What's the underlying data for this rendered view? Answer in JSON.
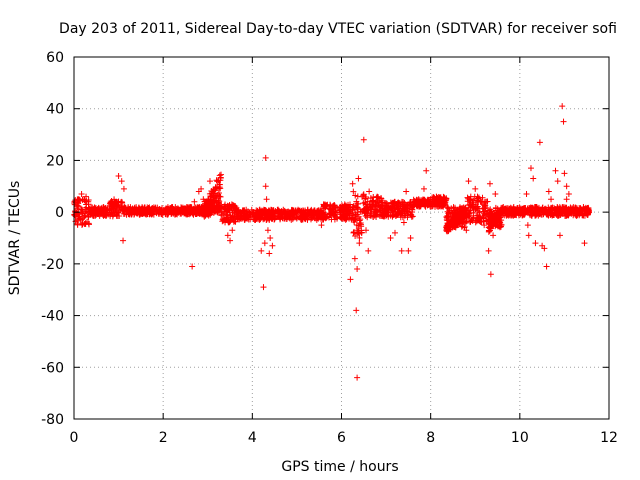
{
  "chart_data": {
    "type": "scatter",
    "title": "Day 203 of 2011, Sidereal Day-to-day VTEC variation (SDTVAR) for receiver sofi",
    "xlabel": "GPS time / hours",
    "ylabel": "SDTVAR / TECUs",
    "xlim": [
      0,
      12
    ],
    "ylim": [
      -80,
      60
    ],
    "xticks": [
      0,
      2,
      4,
      6,
      8,
      10,
      12
    ],
    "yticks": [
      -80,
      -60,
      -40,
      -20,
      0,
      20,
      40,
      60
    ],
    "grid": true,
    "marker": "+",
    "color": "#ff0000",
    "series": [
      {
        "name": "SDTVAR",
        "bands": [
          {
            "x": [
              0.0,
              0.35
            ],
            "y": [
              -5,
              5
            ]
          },
          {
            "x": [
              0.35,
              0.8
            ],
            "y": [
              -1.5,
              2
            ]
          },
          {
            "x": [
              0.8,
              1.1
            ],
            "y": [
              -2,
              5
            ]
          },
          {
            "x": [
              1.1,
              2.9
            ],
            "y": [
              -1,
              2
            ]
          },
          {
            "x": [
              2.9,
              3.05
            ],
            "y": [
              -1,
              5
            ]
          },
          {
            "x": [
              3.3,
              3.65
            ],
            "y": [
              -4,
              3
            ]
          },
          {
            "x": [
              3.65,
              5.6
            ],
            "y": [
              -3,
              1
            ]
          },
          {
            "x": [
              5.6,
              6.25
            ],
            "y": [
              -3,
              3
            ]
          },
          {
            "x": [
              6.25,
              6.5
            ],
            "y": [
              -10,
              8
            ]
          },
          {
            "x": [
              6.5,
              6.9
            ],
            "y": [
              -2,
              6
            ]
          },
          {
            "x": [
              6.9,
              7.6
            ],
            "y": [
              -2,
              4
            ]
          },
          {
            "x": [
              7.6,
              8.0
            ],
            "y": [
              2,
              5
            ]
          },
          {
            "x": [
              8.0,
              8.35
            ],
            "y": [
              2,
              6
            ]
          },
          {
            "x": [
              8.35,
              8.8
            ],
            "y": [
              -6,
              2
            ]
          },
          {
            "x": [
              8.8,
              9.3
            ],
            "y": [
              -4,
              6
            ]
          },
          {
            "x": [
              9.3,
              9.6
            ],
            "y": [
              -6,
              2
            ]
          },
          {
            "x": [
              9.6,
              11.55
            ],
            "y": [
              -1.5,
              2
            ]
          }
        ],
        "ramps": [
          {
            "x": [
              2.9,
              3.3
            ],
            "y1": [
              2,
              16
            ],
            "y2": [
              -2,
              0
            ]
          },
          {
            "x": [
              8.35,
              8.8
            ],
            "y1": [
              -5,
              3
            ],
            "y2": [
              -8,
              -2
            ]
          },
          {
            "x": [
              9.3,
              9.6
            ],
            "y1": [
              -8,
              0
            ],
            "y2": [
              -3,
              1
            ]
          }
        ],
        "points": [
          [
            0.17,
            7
          ],
          [
            0.2,
            5
          ],
          [
            0.25,
            4
          ],
          [
            0.27,
            6
          ],
          [
            1.0,
            14
          ],
          [
            1.07,
            12
          ],
          [
            1.12,
            9
          ],
          [
            1.1,
            -11
          ],
          [
            2.65,
            -21
          ],
          [
            2.7,
            4
          ],
          [
            2.8,
            8
          ],
          [
            2.85,
            9
          ],
          [
            3.05,
            12
          ],
          [
            3.45,
            -9
          ],
          [
            3.5,
            -11
          ],
          [
            3.55,
            -7
          ],
          [
            4.2,
            -15
          ],
          [
            4.25,
            -29
          ],
          [
            4.3,
            21
          ],
          [
            4.3,
            10
          ],
          [
            4.32,
            5
          ],
          [
            4.28,
            -12
          ],
          [
            4.35,
            -7
          ],
          [
            4.38,
            -3
          ],
          [
            4.4,
            -10
          ],
          [
            4.45,
            -13
          ],
          [
            4.38,
            -16
          ],
          [
            5.55,
            -5
          ],
          [
            5.6,
            3
          ],
          [
            6.2,
            -26
          ],
          [
            6.25,
            11
          ],
          [
            6.3,
            -18
          ],
          [
            6.33,
            -38
          ],
          [
            6.35,
            -64
          ],
          [
            6.35,
            -22
          ],
          [
            6.38,
            13
          ],
          [
            6.4,
            -12
          ],
          [
            6.45,
            -8
          ],
          [
            6.5,
            28
          ],
          [
            6.55,
            -7
          ],
          [
            6.6,
            -15
          ],
          [
            6.62,
            8
          ],
          [
            7.1,
            -10
          ],
          [
            7.2,
            -8
          ],
          [
            7.35,
            -15
          ],
          [
            7.45,
            8
          ],
          [
            7.5,
            -15
          ],
          [
            7.4,
            -4
          ],
          [
            7.55,
            -10
          ],
          [
            7.85,
            9
          ],
          [
            7.9,
            16
          ],
          [
            8.4,
            -6
          ],
          [
            8.7,
            -4
          ],
          [
            8.8,
            -7
          ],
          [
            8.85,
            12
          ],
          [
            8.9,
            6
          ],
          [
            9.0,
            9
          ],
          [
            9.05,
            6
          ],
          [
            9.2,
            -5
          ],
          [
            9.3,
            -15
          ],
          [
            9.33,
            11
          ],
          [
            9.35,
            -24
          ],
          [
            9.4,
            -9
          ],
          [
            9.45,
            7
          ],
          [
            9.5,
            -4
          ],
          [
            10.15,
            7
          ],
          [
            10.18,
            -5
          ],
          [
            10.2,
            -9
          ],
          [
            10.25,
            17
          ],
          [
            10.3,
            13
          ],
          [
            10.35,
            -12
          ],
          [
            10.45,
            27
          ],
          [
            10.5,
            -13
          ],
          [
            10.55,
            -14
          ],
          [
            10.6,
            -21
          ],
          [
            10.65,
            8
          ],
          [
            10.7,
            5
          ],
          [
            10.8,
            16
          ],
          [
            10.85,
            12
          ],
          [
            10.9,
            -9
          ],
          [
            10.95,
            41
          ],
          [
            10.98,
            35
          ],
          [
            11.0,
            15
          ],
          [
            11.05,
            10
          ],
          [
            11.1,
            7
          ],
          [
            11.05,
            5
          ],
          [
            11.45,
            -12
          ]
        ]
      }
    ]
  }
}
